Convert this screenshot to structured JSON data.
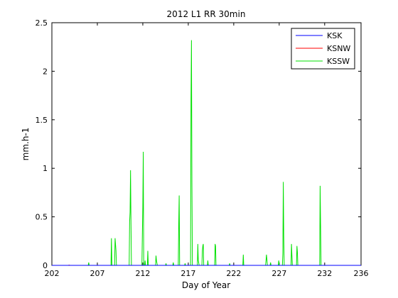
{
  "chart_data": {
    "type": "line",
    "title": "2012 L1 RR 30min",
    "xlabel": "Day of Year",
    "ylabel": "mm.h-1",
    "xlim": [
      202,
      236
    ],
    "ylim": [
      0,
      2.5
    ],
    "xticks": [
      202,
      207,
      212,
      217,
      222,
      227,
      232,
      236
    ],
    "yticks": [
      0,
      0.5,
      1,
      1.5,
      2,
      2.5
    ],
    "xtick_labels": [
      "202",
      "207",
      "212",
      "217",
      "222",
      "227",
      "232",
      "236"
    ],
    "ytick_labels": [
      "0",
      "0.5",
      "1",
      "1.5",
      "2",
      "2.5"
    ],
    "legend_position": "top-right",
    "series": [
      {
        "name": "KSK",
        "color": "#0000ff",
        "points": [
          [
            202,
            0
          ],
          [
            236,
            0
          ]
        ]
      },
      {
        "name": "KSNW",
        "color": "#ff0000",
        "points": [
          [
            202,
            0
          ],
          [
            203.8,
            0
          ],
          [
            203.9,
            0.003
          ],
          [
            204.0,
            0
          ],
          [
            236,
            0
          ]
        ]
      },
      {
        "name": "KSSW",
        "color": "#00e000",
        "points": [
          [
            202,
            0
          ],
          [
            206.0,
            0
          ],
          [
            206.05,
            0.03
          ],
          [
            206.1,
            0
          ],
          [
            208.5,
            0
          ],
          [
            208.55,
            0.28
          ],
          [
            208.6,
            0
          ],
          [
            208.9,
            0
          ],
          [
            208.95,
            0.28
          ],
          [
            209.05,
            0.15
          ],
          [
            209.1,
            0
          ],
          [
            210.5,
            0
          ],
          [
            210.55,
            0.45
          ],
          [
            210.6,
            0.55
          ],
          [
            210.65,
            0.98
          ],
          [
            210.7,
            0.42
          ],
          [
            210.75,
            0
          ],
          [
            211.9,
            0
          ],
          [
            211.95,
            0.32
          ],
          [
            212.0,
            0.6
          ],
          [
            212.05,
            1.17
          ],
          [
            212.1,
            0
          ],
          [
            212.2,
            0
          ],
          [
            212.25,
            0.05
          ],
          [
            212.3,
            0
          ],
          [
            212.5,
            0
          ],
          [
            212.55,
            0.15
          ],
          [
            212.6,
            0
          ],
          [
            213.4,
            0
          ],
          [
            213.45,
            0.1
          ],
          [
            213.5,
            0.05
          ],
          [
            213.6,
            0
          ],
          [
            214.5,
            0
          ],
          [
            214.55,
            0.02
          ],
          [
            214.6,
            0
          ],
          [
            215.3,
            0
          ],
          [
            215.35,
            0.03
          ],
          [
            215.4,
            0
          ],
          [
            215.9,
            0
          ],
          [
            215.95,
            0.42
          ],
          [
            216.0,
            0.72
          ],
          [
            216.05,
            0
          ],
          [
            216.6,
            0
          ],
          [
            216.65,
            0.02
          ],
          [
            216.7,
            0
          ],
          [
            217.25,
            0
          ],
          [
            217.3,
            1.7
          ],
          [
            217.35,
            2.32
          ],
          [
            217.4,
            0.85
          ],
          [
            217.45,
            0
          ],
          [
            218.0,
            0
          ],
          [
            218.05,
            0.22
          ],
          [
            218.1,
            0.05
          ],
          [
            218.2,
            0
          ],
          [
            218.5,
            0
          ],
          [
            218.55,
            0.15
          ],
          [
            218.6,
            0.2
          ],
          [
            218.65,
            0.22
          ],
          [
            218.7,
            0
          ],
          [
            219.1,
            0
          ],
          [
            219.15,
            0.05
          ],
          [
            219.2,
            0
          ],
          [
            219.9,
            0
          ],
          [
            219.95,
            0.22
          ],
          [
            220.0,
            0.2
          ],
          [
            220.05,
            0
          ],
          [
            221.5,
            0
          ],
          [
            221.55,
            0.02
          ],
          [
            221.6,
            0
          ],
          [
            223.0,
            0
          ],
          [
            223.05,
            0.11
          ],
          [
            223.1,
            0
          ],
          [
            225.5,
            0
          ],
          [
            225.55,
            0.05
          ],
          [
            225.6,
            0.11
          ],
          [
            225.65,
            0.06
          ],
          [
            225.7,
            0
          ],
          [
            226.0,
            0
          ],
          [
            226.05,
            0.03
          ],
          [
            226.1,
            0
          ],
          [
            226.9,
            0
          ],
          [
            226.95,
            0.05
          ],
          [
            227.0,
            0
          ],
          [
            227.35,
            0
          ],
          [
            227.4,
            0.12
          ],
          [
            227.45,
            0.86
          ],
          [
            227.5,
            0.3
          ],
          [
            227.55,
            0
          ],
          [
            228.3,
            0
          ],
          [
            228.35,
            0.22
          ],
          [
            228.4,
            0.1
          ],
          [
            228.45,
            0
          ],
          [
            228.9,
            0
          ],
          [
            228.95,
            0.2
          ],
          [
            229.0,
            0.14
          ],
          [
            229.05,
            0
          ],
          [
            231.45,
            0
          ],
          [
            231.5,
            0.82
          ],
          [
            231.55,
            0.42
          ],
          [
            231.6,
            0
          ],
          [
            236,
            0
          ]
        ]
      }
    ]
  }
}
